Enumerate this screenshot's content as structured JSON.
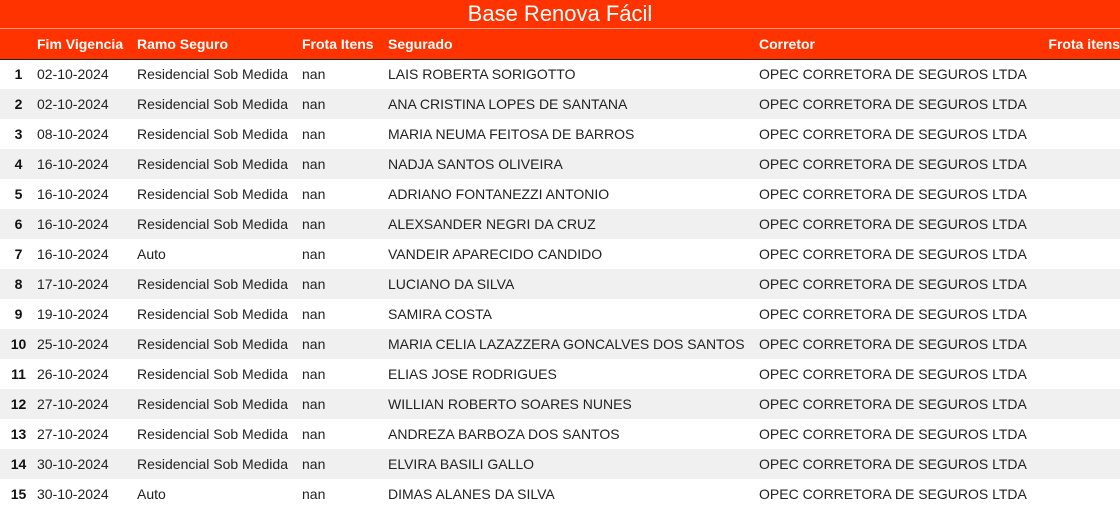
{
  "title": "Base Renova Fácil",
  "colors": {
    "header_bg": "#ff3300",
    "header_text": "#ffffff",
    "row_alt": "#f0f0f0"
  },
  "columns": [
    "",
    "Fim Vigencia",
    "Ramo Seguro",
    "Frota Itens",
    "Segurado",
    "Corretor",
    "Frota itens"
  ],
  "rows": [
    {
      "idx": "1",
      "fim": "02-10-2024",
      "ramo": "Residencial Sob Medida",
      "frota": "nan",
      "segurado": "LAIS ROBERTA SORIGOTTO",
      "corretor": "OPEC CORRETORA DE SEGUROS LTDA",
      "frota2": ""
    },
    {
      "idx": "2",
      "fim": "02-10-2024",
      "ramo": "Residencial Sob Medida",
      "frota": "nan",
      "segurado": "ANA CRISTINA LOPES DE SANTANA",
      "corretor": "OPEC CORRETORA DE SEGUROS LTDA",
      "frota2": ""
    },
    {
      "idx": "3",
      "fim": "08-10-2024",
      "ramo": "Residencial Sob Medida",
      "frota": "nan",
      "segurado": "MARIA NEUMA FEITOSA DE BARROS",
      "corretor": "OPEC CORRETORA DE SEGUROS LTDA",
      "frota2": ""
    },
    {
      "idx": "4",
      "fim": "16-10-2024",
      "ramo": "Residencial Sob Medida",
      "frota": "nan",
      "segurado": "NADJA SANTOS OLIVEIRA",
      "corretor": "OPEC CORRETORA DE SEGUROS LTDA",
      "frota2": ""
    },
    {
      "idx": "5",
      "fim": "16-10-2024",
      "ramo": "Residencial Sob Medida",
      "frota": "nan",
      "segurado": "ADRIANO FONTANEZZI ANTONIO",
      "corretor": "OPEC CORRETORA DE SEGUROS LTDA",
      "frota2": ""
    },
    {
      "idx": "6",
      "fim": "16-10-2024",
      "ramo": "Residencial Sob Medida",
      "frota": "nan",
      "segurado": "ALEXSANDER NEGRI DA CRUZ",
      "corretor": "OPEC CORRETORA DE SEGUROS LTDA",
      "frota2": ""
    },
    {
      "idx": "7",
      "fim": "16-10-2024",
      "ramo": "Auto",
      "frota": "nan",
      "segurado": "VANDEIR APARECIDO CANDIDO",
      "corretor": "OPEC CORRETORA DE SEGUROS LTDA",
      "frota2": ""
    },
    {
      "idx": "8",
      "fim": "17-10-2024",
      "ramo": "Residencial Sob Medida",
      "frota": "nan",
      "segurado": "LUCIANO DA SILVA",
      "corretor": "OPEC CORRETORA DE SEGUROS LTDA",
      "frota2": ""
    },
    {
      "idx": "9",
      "fim": "19-10-2024",
      "ramo": "Residencial Sob Medida",
      "frota": "nan",
      "segurado": "SAMIRA COSTA",
      "corretor": "OPEC CORRETORA DE SEGUROS LTDA",
      "frota2": ""
    },
    {
      "idx": "10",
      "fim": "25-10-2024",
      "ramo": "Residencial Sob Medida",
      "frota": "nan",
      "segurado": "MARIA CELIA LAZAZZERA GONCALVES DOS SANTOS",
      "corretor": "OPEC CORRETORA DE SEGUROS LTDA",
      "frota2": ""
    },
    {
      "idx": "11",
      "fim": "26-10-2024",
      "ramo": "Residencial Sob Medida",
      "frota": "nan",
      "segurado": "ELIAS JOSE RODRIGUES",
      "corretor": "OPEC CORRETORA DE SEGUROS LTDA",
      "frota2": ""
    },
    {
      "idx": "12",
      "fim": "27-10-2024",
      "ramo": "Residencial Sob Medida",
      "frota": "nan",
      "segurado": "WILLIAN ROBERTO SOARES NUNES",
      "corretor": "OPEC CORRETORA DE SEGUROS LTDA",
      "frota2": ""
    },
    {
      "idx": "13",
      "fim": "27-10-2024",
      "ramo": "Residencial Sob Medida",
      "frota": "nan",
      "segurado": "ANDREZA BARBOZA DOS SANTOS",
      "corretor": "OPEC CORRETORA DE SEGUROS LTDA",
      "frota2": ""
    },
    {
      "idx": "14",
      "fim": "30-10-2024",
      "ramo": "Residencial Sob Medida",
      "frota": "nan",
      "segurado": "ELVIRA BASILI GALLO",
      "corretor": "OPEC CORRETORA DE SEGUROS LTDA",
      "frota2": ""
    },
    {
      "idx": "15",
      "fim": "30-10-2024",
      "ramo": "Auto",
      "frota": "nan",
      "segurado": "DIMAS ALANES DA SILVA",
      "corretor": "OPEC CORRETORA DE SEGUROS LTDA",
      "frota2": ""
    }
  ]
}
